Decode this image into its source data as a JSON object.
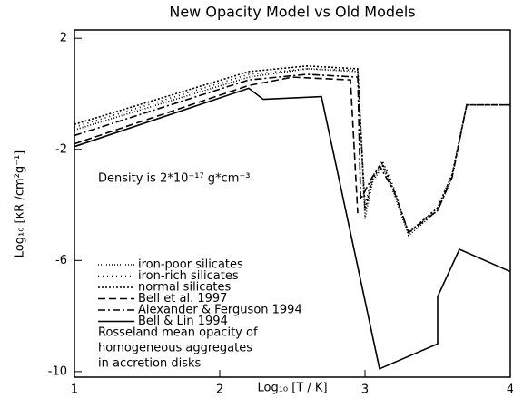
{
  "chart_data": {
    "type": "line",
    "title": "New Opacity Model vs Old Models",
    "xlabel": "Log₁₀ [T / K]",
    "ylabel": "Log₁₀ [κR /cm²g⁻¹]",
    "annotations": [
      "Density is 2*10⁻¹⁷ g*cm⁻³",
      "Rosseland mean opacity of",
      "homogeneous aggregates",
      "in accretion disks"
    ],
    "xlim": [
      1,
      4
    ],
    "xticks": [
      1,
      2,
      3,
      4
    ],
    "ylim": [
      -10.2,
      2.3
    ],
    "yticks": [
      2,
      -2,
      -6,
      -10
    ],
    "series": [
      {
        "name": "iron-poor silicates",
        "color": "#000",
        "dash": "1,2",
        "x": [
          1,
          2.2,
          2.6,
          2.95,
          3.0,
          3.05,
          3.12,
          3.2,
          3.3,
          3.5,
          3.6,
          3.7,
          4
        ],
        "values": [
          -1.3,
          0.6,
          0.9,
          0.8,
          -4.5,
          -3.2,
          -2.6,
          -3.6,
          -5.1,
          -4.2,
          -3.0,
          -0.4,
          -0.4
        ]
      },
      {
        "name": "iron-rich silicates",
        "color": "#000",
        "dash": "1,4",
        "x": [
          1,
          2.2,
          2.6,
          2.95,
          3.0,
          3.05,
          3.12,
          3.2,
          3.3,
          3.5,
          3.6,
          3.7,
          4
        ],
        "values": [
          -1.2,
          0.7,
          0.9,
          0.85,
          -4.0,
          -3.0,
          -2.4,
          -3.4,
          -5.0,
          -4.1,
          -2.9,
          -0.4,
          -0.4
        ]
      },
      {
        "name": "normal silicates",
        "color": "#000",
        "dash": "2,2",
        "x": [
          1,
          2.2,
          2.6,
          2.95,
          3.0,
          3.05,
          3.12,
          3.2,
          3.3,
          3.5,
          3.6,
          3.7,
          4
        ],
        "values": [
          -1.1,
          0.8,
          1.0,
          0.9,
          -4.2,
          -3.1,
          -2.5,
          -3.5,
          -5.0,
          -4.1,
          -2.9,
          -0.4,
          -0.4
        ]
      },
      {
        "name": "Bell et al. 1997",
        "color": "#000",
        "dash": "8,4",
        "x": [
          1,
          2.2,
          2.5,
          2.9,
          2.95
        ],
        "values": [
          -1.8,
          0.3,
          0.6,
          0.5,
          -4.3
        ]
      },
      {
        "name": "Alexander & Ferguson 1994",
        "color": "#000",
        "dash": "8,3,2,3",
        "x": [
          1,
          2.2,
          2.6,
          2.95,
          2.97,
          3.05,
          3.1,
          3.2,
          3.3,
          3.5,
          3.6,
          3.7,
          4
        ],
        "values": [
          -1.5,
          0.5,
          0.7,
          0.6,
          -3.8,
          -3.0,
          -2.6,
          -3.5,
          -5.0,
          -4.2,
          -3.0,
          -0.4,
          -0.4
        ]
      },
      {
        "name": "Bell & Lin 1994",
        "color": "#000",
        "dash": "",
        "x": [
          1,
          2.2,
          2.3,
          2.7,
          3.1,
          3.5,
          3.5,
          3.65,
          4
        ],
        "values": [
          -1.9,
          0.2,
          -0.2,
          -0.1,
          -9.9,
          -9.0,
          -7.3,
          -5.6,
          -6.4
        ]
      }
    ]
  }
}
